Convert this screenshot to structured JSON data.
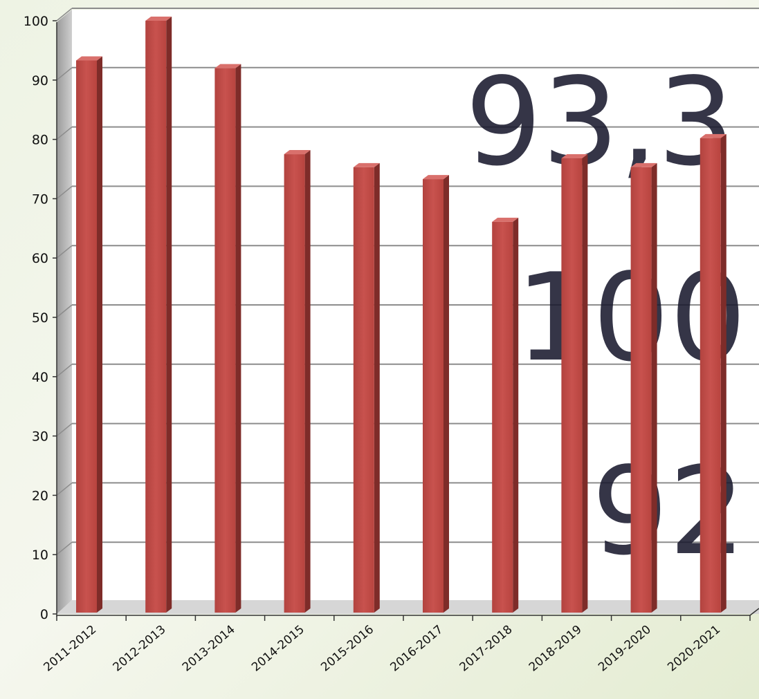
{
  "chart_data": {
    "type": "bar",
    "categories": [
      "2011-2012",
      "2012-2013",
      "2013-2014",
      "2014-2015",
      "2015-2016",
      "2016-2017",
      "2017-2018",
      "2018-2019",
      "2019-2020",
      "2020-2021"
    ],
    "values": [
      93.3,
      100,
      92,
      77.5,
      75.3,
      73.3,
      66.1,
      76.8,
      75.3,
      80.2
    ],
    "ylim": [
      0,
      100
    ],
    "yticks": [
      0,
      10,
      20,
      30,
      40,
      50,
      60,
      70,
      80,
      90,
      100
    ],
    "grid": true,
    "bar_color": "#c0504d",
    "annotations": [
      "93,3",
      "100",
      "92"
    ]
  }
}
